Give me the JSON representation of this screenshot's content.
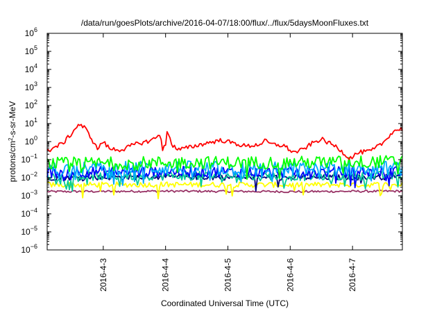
{
  "chart_data": {
    "type": "line",
    "title": "/data/run/goesPlots/archive/2016-04-07/18:00/flux/../flux/5daysMoonFluxes.txt",
    "xlabel": "Coordinated Universal Time (UTC)",
    "ylabel": {
      "pre": "protons/cm",
      "sup": "2",
      "post": "-s-sr-MeV"
    },
    "yscale": "log",
    "ylim_exp": [
      -6,
      6
    ],
    "ytick_exponents": [
      -6,
      -5,
      -4,
      -3,
      -2,
      -1,
      0,
      1,
      2,
      3,
      4,
      5,
      6
    ],
    "ytick_base": "10",
    "xlim_days": [
      2.1,
      7.8
    ],
    "xticks": [
      {
        "day": 3,
        "label": "2016-4-3"
      },
      {
        "day": 4,
        "label": "2016-4-4"
      },
      {
        "day": 5,
        "label": "2016-4-5"
      },
      {
        "day": 6,
        "label": "2016-4-6"
      },
      {
        "day": 7,
        "label": "2016-4-7"
      }
    ],
    "grid": false,
    "series": [
      {
        "color": "#ff0000",
        "noise": 0.12,
        "points": [
          [
            2.1,
            0.5
          ],
          [
            2.15,
            0.3
          ],
          [
            2.2,
            0.45
          ],
          [
            2.35,
            0.8
          ],
          [
            2.5,
            3
          ],
          [
            2.6,
            9
          ],
          [
            2.7,
            6
          ],
          [
            2.8,
            1.8
          ],
          [
            2.9,
            0.4
          ],
          [
            3.0,
            1.0
          ],
          [
            3.1,
            0.4
          ],
          [
            3.3,
            0.35
          ],
          [
            3.5,
            0.7
          ],
          [
            3.7,
            1.0
          ],
          [
            3.85,
            1.6
          ],
          [
            3.92,
            3
          ],
          [
            3.95,
            0.35
          ],
          [
            4.0,
            0.6
          ],
          [
            4.03,
            5
          ],
          [
            4.1,
            0.7
          ],
          [
            4.2,
            0.35
          ],
          [
            4.4,
            0.5
          ],
          [
            4.7,
            0.9
          ],
          [
            4.9,
            1.2
          ],
          [
            5.1,
            0.8
          ],
          [
            5.3,
            0.55
          ],
          [
            5.5,
            0.7
          ],
          [
            5.6,
            1.1
          ],
          [
            5.7,
            0.7
          ],
          [
            5.9,
            0.6
          ],
          [
            6.05,
            0.25
          ],
          [
            6.2,
            0.35
          ],
          [
            6.35,
            0.8
          ],
          [
            6.5,
            1.4
          ],
          [
            6.6,
            0.9
          ],
          [
            6.75,
            0.5
          ],
          [
            6.95,
            0.12
          ],
          [
            7.1,
            0.25
          ],
          [
            7.3,
            0.3
          ],
          [
            7.5,
            0.9
          ],
          [
            7.6,
            2.5
          ],
          [
            7.7,
            4.5
          ],
          [
            7.8,
            5
          ]
        ]
      },
      {
        "color": "#00ff00",
        "noise": 0.35,
        "dips": 0.08,
        "points": [
          [
            2.1,
            0.06
          ],
          [
            4.0,
            0.07
          ],
          [
            6.0,
            0.07
          ],
          [
            7.8,
            0.08
          ]
        ]
      },
      {
        "color": "#00aaff",
        "noise": 0.4,
        "dips": 0.12,
        "points": [
          [
            2.1,
            0.03
          ],
          [
            4.0,
            0.035
          ],
          [
            6.0,
            0.03
          ],
          [
            7.8,
            0.035
          ]
        ]
      },
      {
        "color": "#0000ff",
        "noise": 0.3,
        "dips": 0.08,
        "points": [
          [
            2.1,
            0.02
          ],
          [
            4.0,
            0.022
          ],
          [
            6.0,
            0.02
          ],
          [
            7.8,
            0.022
          ]
        ]
      },
      {
        "color": "#00cc99",
        "noise": 0.25,
        "dips": 0.1,
        "points": [
          [
            2.1,
            0.012
          ],
          [
            4.0,
            0.013
          ],
          [
            6.0,
            0.012
          ],
          [
            7.8,
            0.013
          ]
        ]
      },
      {
        "color": "#000080",
        "noise": 0.15,
        "dips": 0.02,
        "points": [
          [
            2.1,
            0.01
          ],
          [
            4.0,
            0.011
          ],
          [
            6.0,
            0.01
          ],
          [
            7.8,
            0.011
          ]
        ]
      },
      {
        "color": "#ffff00",
        "noise": 0.15,
        "dips": 0.05,
        "points": [
          [
            2.1,
            0.004
          ],
          [
            4.0,
            0.0042
          ],
          [
            6.0,
            0.004
          ],
          [
            7.8,
            0.0042
          ]
        ]
      },
      {
        "color": "#993366",
        "noise": 0.06,
        "dips": 0.0,
        "points": [
          [
            2.1,
            0.0017
          ],
          [
            4.0,
            0.0018
          ],
          [
            6.0,
            0.0017
          ],
          [
            7.8,
            0.0018
          ]
        ]
      }
    ]
  }
}
